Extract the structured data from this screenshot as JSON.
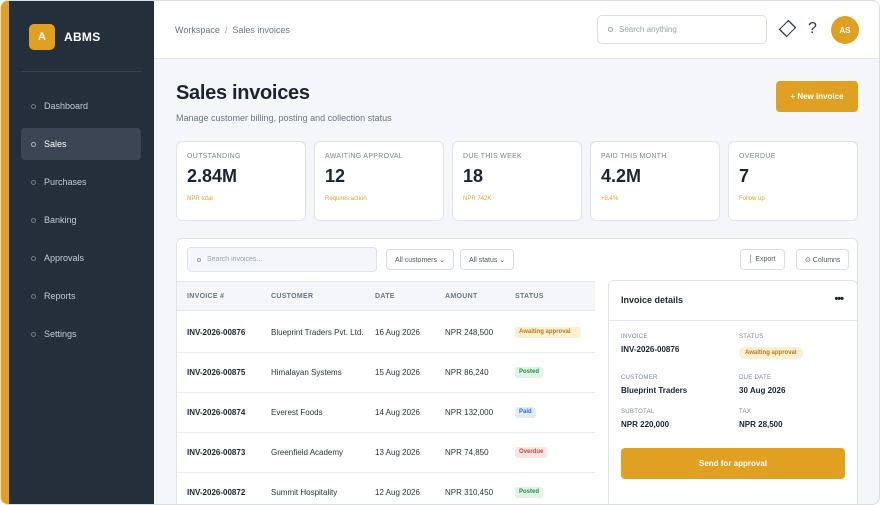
{
  "app": {
    "logo_letter": "A",
    "name": "ABMS"
  },
  "sidebar": {
    "items": [
      {
        "label": "Dashboard",
        "active": false
      },
      {
        "label": "Sales",
        "active": true
      },
      {
        "label": "Purchases",
        "active": false
      },
      {
        "label": "Banking",
        "active": false
      },
      {
        "label": "Approvals",
        "active": false
      },
      {
        "label": "Reports",
        "active": false
      },
      {
        "label": "Settings",
        "active": false
      }
    ]
  },
  "topbar": {
    "breadcrumb": [
      "Workspace",
      "Sales invoices"
    ],
    "search_placeholder": "Search anything",
    "help_symbol": "?",
    "avatar_initials": "AS"
  },
  "page": {
    "title": "Sales invoices",
    "subtitle": "Manage customer billing, posting and collection status",
    "new_button": "+ New invoice"
  },
  "kpis": [
    {
      "label": "OUTSTANDING",
      "value": "2.84M",
      "note": "NPR total"
    },
    {
      "label": "AWAITING APPROVAL",
      "value": "12",
      "note": "Requires action"
    },
    {
      "label": "DUE THIS WEEK",
      "value": "18",
      "note": "NPR 742K"
    },
    {
      "label": "PAID THIS MONTH",
      "value": "4.2M",
      "note": "+8.4%"
    },
    {
      "label": "OVERDUE",
      "value": "7",
      "note": "Follow up"
    }
  ],
  "filters": {
    "search_placeholder": "Search invoices...",
    "customers": "All customers ⌄",
    "status": "All status ⌄",
    "export": "│ Export",
    "columns": "⊙ Columns"
  },
  "table": {
    "headers": [
      "INVOICE #",
      "CUSTOMER",
      "DATE",
      "AMOUNT",
      "STATUS"
    ],
    "rows": [
      {
        "invoice": "INV-2026-00876",
        "customer": "Blueprint Traders Pvt. Ltd.",
        "date": "16 Aug 2026",
        "amount": "NPR 248,500",
        "status": "Awaiting approval",
        "status_type": "awaiting"
      },
      {
        "invoice": "INV-2026-00875",
        "customer": "Himalayan Systems",
        "date": "15 Aug 2026",
        "amount": "NPR 86,240",
        "status": "Posted",
        "status_type": "posted"
      },
      {
        "invoice": "INV-2026-00874",
        "customer": "Everest Foods",
        "date": "14 Aug 2026",
        "amount": "NPR 132,000",
        "status": "Paid",
        "status_type": "paid"
      },
      {
        "invoice": "INV-2026-00873",
        "customer": "Greenfield Academy",
        "date": "13 Aug 2026",
        "amount": "NPR 74,850",
        "status": "Overdue",
        "status_type": "overdue"
      },
      {
        "invoice": "INV-2026-00872",
        "customer": "Summit Hospitality",
        "date": "12 Aug 2026",
        "amount": "NPR 310,450",
        "status": "Posted",
        "status_type": "posted"
      }
    ]
  },
  "details": {
    "title": "Invoice details",
    "more": "•••",
    "invoice_label": "INVOICE",
    "invoice_value": "INV-2026-00876",
    "status_label": "STATUS",
    "status_value": "Awaiting approval",
    "customer_label": "CUSTOMER",
    "customer_value": "Blueprint Traders",
    "due_label": "DUE DATE",
    "due_value": "30 Aug 2026",
    "subtotal_label": "SUBTOTAL",
    "subtotal_value": "NPR 220,000",
    "tax_label": "TAX",
    "tax_value": "NPR 28,500",
    "send_button": "Send for approval"
  },
  "colors": {
    "accent": "#e0a021",
    "sidebar": "#252e3b"
  }
}
